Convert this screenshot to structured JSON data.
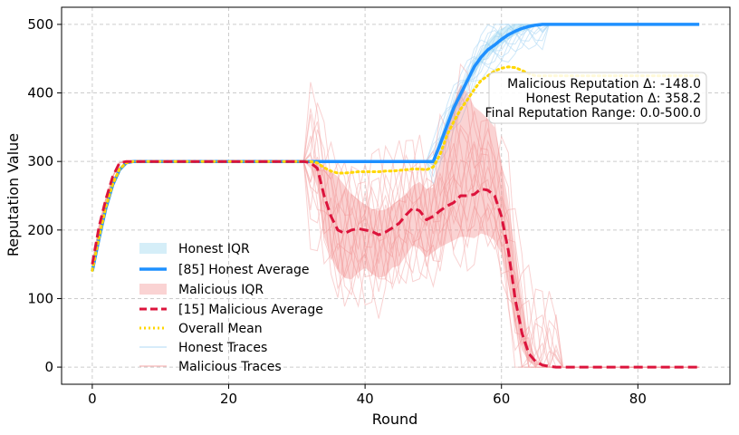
{
  "chart_data": {
    "type": "line",
    "title": "",
    "xlabel": "Round",
    "ylabel": "Reputation Value",
    "xlim": [
      -4.5,
      93.5
    ],
    "ylim": [
      -25,
      525
    ],
    "xticks": [
      0,
      20,
      40,
      60,
      80
    ],
    "yticks": [
      0,
      100,
      200,
      300,
      400,
      500
    ],
    "grid": true,
    "grid_style": "dashed",
    "legend_position": "lower-left",
    "x": [
      0,
      1,
      2,
      3,
      4,
      5,
      6,
      7,
      8,
      9,
      10,
      11,
      12,
      13,
      14,
      15,
      16,
      17,
      18,
      19,
      20,
      21,
      22,
      23,
      24,
      25,
      26,
      27,
      28,
      29,
      30,
      31,
      32,
      33,
      34,
      35,
      36,
      37,
      38,
      39,
      40,
      41,
      42,
      43,
      44,
      45,
      46,
      47,
      48,
      49,
      50,
      51,
      52,
      53,
      54,
      55,
      56,
      57,
      58,
      59,
      60,
      61,
      62,
      63,
      64,
      65,
      66,
      67,
      68,
      69,
      70,
      71,
      72,
      73,
      74,
      75,
      76,
      77,
      78,
      79,
      80,
      81,
      82,
      83,
      84,
      85,
      86,
      87,
      88,
      89
    ],
    "series": [
      {
        "name": "[85] Honest Average",
        "style": "solid",
        "color": "#1E90FF",
        "values": [
          140,
          188,
          232,
          266,
          288,
          298,
          300,
          300,
          300,
          300,
          300,
          300,
          300,
          300,
          300,
          300,
          300,
          300,
          300,
          300,
          300,
          300,
          300,
          300,
          300,
          300,
          300,
          300,
          300,
          300,
          300,
          300,
          300,
          300,
          300,
          300,
          300,
          300,
          300,
          300,
          300,
          300,
          300,
          300,
          300,
          300,
          300,
          300,
          300,
          300,
          300,
          325,
          352,
          378,
          398,
          418,
          438,
          452,
          463,
          470,
          478,
          485,
          490,
          494,
          497,
          499,
          500,
          500,
          500,
          500,
          500,
          500,
          500,
          500,
          500,
          500,
          500,
          500,
          500,
          500,
          500,
          500,
          500,
          500,
          500,
          500,
          500,
          500,
          500,
          500
        ]
      },
      {
        "name": "[15] Malicious Average",
        "style": "dashed",
        "color": "#DC143C",
        "values": [
          150,
          205,
          245,
          278,
          298,
          300,
          300,
          300,
          300,
          300,
          300,
          300,
          300,
          300,
          300,
          300,
          300,
          300,
          300,
          300,
          300,
          300,
          300,
          300,
          300,
          300,
          300,
          300,
          300,
          300,
          300,
          300,
          298,
          290,
          250,
          220,
          200,
          195,
          200,
          202,
          200,
          198,
          193,
          197,
          203,
          210,
          222,
          232,
          228,
          215,
          220,
          228,
          235,
          240,
          250,
          250,
          252,
          260,
          258,
          250,
          220,
          170,
          100,
          50,
          20,
          8,
          3,
          1,
          0,
          0,
          0,
          0,
          0,
          0,
          0,
          0,
          0,
          0,
          0,
          0,
          0,
          0,
          0,
          0,
          0,
          0,
          0,
          0,
          0,
          0
        ]
      },
      {
        "name": "Overall Mean",
        "style": "dotted",
        "color": "#FFD700",
        "values": [
          141,
          190,
          234,
          267,
          289,
          298,
          300,
          300,
          300,
          300,
          300,
          300,
          300,
          300,
          300,
          300,
          300,
          300,
          300,
          300,
          300,
          300,
          300,
          300,
          300,
          300,
          300,
          300,
          300,
          300,
          300,
          300,
          300,
          298,
          291,
          286,
          283,
          283,
          284,
          285,
          285,
          285,
          285,
          286,
          286,
          287,
          288,
          289,
          289,
          288,
          292,
          310,
          338,
          358,
          376,
          390,
          405,
          418,
          425,
          432,
          436,
          438,
          437,
          433,
          428,
          425,
          425,
          425,
          425,
          425,
          425,
          425,
          425,
          425,
          425,
          425,
          425,
          425,
          425,
          425,
          425,
          425,
          425,
          425,
          425,
          425,
          425,
          425,
          425,
          425
        ]
      }
    ],
    "bands": [
      {
        "name": "Honest IQR",
        "color": "#87CEEB",
        "x_start": 50,
        "lower": [
          300,
          318,
          343,
          368,
          390,
          410,
          428,
          442,
          453,
          462,
          470,
          478,
          484,
          489,
          493,
          497,
          500
        ],
        "upper": [
          300,
          332,
          362,
          388,
          408,
          428,
          448,
          462,
          476,
          487,
          494,
          498,
          500,
          500,
          500,
          500,
          500
        ]
      },
      {
        "name": "Malicious IQR",
        "color": "#F08080",
        "x_start": 30,
        "lower": [
          300,
          300,
          290,
          262,
          190,
          160,
          140,
          130,
          128,
          138,
          145,
          136,
          130,
          133,
          145,
          148,
          163,
          178,
          172,
          160,
          168,
          175,
          180,
          185,
          190,
          190,
          188,
          195,
          192,
          185,
          165,
          120,
          60,
          25,
          8,
          3,
          1,
          0,
          0
        ],
        "upper": [
          300,
          300,
          300,
          300,
          292,
          285,
          278,
          265,
          252,
          244,
          237,
          231,
          228,
          230,
          236,
          245,
          252,
          265,
          270,
          260,
          262,
          305,
          352,
          385,
          412,
          400,
          380,
          372,
          362,
          350,
          300,
          240,
          170,
          100,
          40,
          12,
          3,
          1,
          0
        ]
      }
    ],
    "legend": [
      {
        "label": "Honest IQR",
        "kind": "patch",
        "color": "#87CEEB"
      },
      {
        "label": "[85] Honest Average",
        "kind": "line",
        "style": "solid",
        "color": "#1E90FF"
      },
      {
        "label": "Malicious IQR",
        "kind": "patch",
        "color": "#F08080"
      },
      {
        "label": "[15] Malicious Average",
        "kind": "line",
        "style": "dashed",
        "color": "#DC143C"
      },
      {
        "label": "Overall Mean",
        "kind": "line",
        "style": "dotted",
        "color": "#FFD700"
      },
      {
        "label": "Honest Traces",
        "kind": "line",
        "style": "solid",
        "color": "#AFD8F5"
      },
      {
        "label": "Malicious Traces",
        "kind": "line",
        "style": "solid",
        "color": "#F4A6A6"
      }
    ],
    "annotations": [
      "Malicious Reputation Δ: -148.0",
      "Honest Reputation Δ: 358.2",
      "Final Reputation Range: 0.0-500.0"
    ]
  }
}
